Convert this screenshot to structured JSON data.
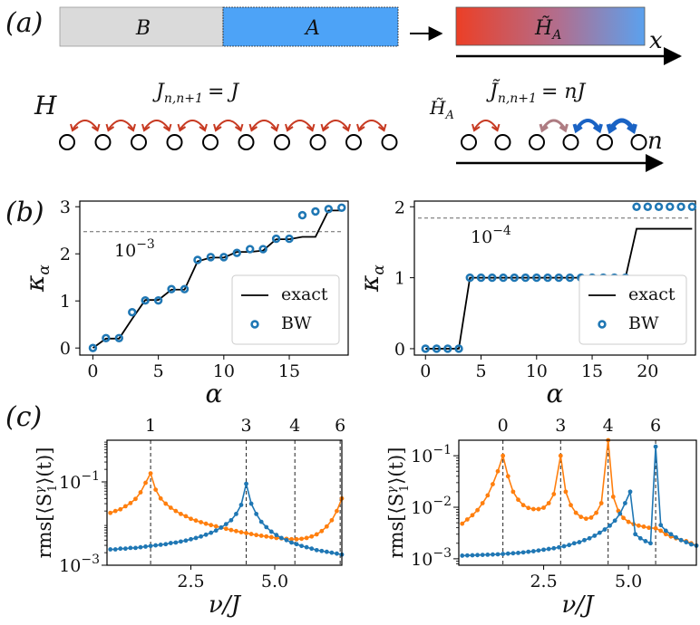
{
  "panel_labels": {
    "a": "(a)",
    "b": "(b)",
    "c": "(c)"
  },
  "schematic": {
    "region_B": "B",
    "region_A": "A",
    "entanglement_hamiltonian": "H̃",
    "entanglement_hamiltonian_sub": "A",
    "x_axis": "x",
    "n_axis": "n",
    "uniform_chain_label": "H",
    "uniform_coupling": "J",
    "uniform_coupling_sub": "n,n+1",
    "uniform_coupling_rhs": "= J",
    "bw_chain_label": "H̃",
    "bw_chain_label_sub": "A",
    "bw_coupling": "J̃",
    "bw_coupling_sub": "n,n+1",
    "bw_coupling_rhs": "= nJ",
    "uniform_sites": 10,
    "bw_sites": 6,
    "colors": {
      "B": "#dadada",
      "A": "#4da3f7",
      "red": "#e8432f",
      "blue": "#2a6fd0",
      "arc_red": "#c73a22",
      "arc_mauve": "#ae7c82",
      "arc_blue": "#1a63c4"
    }
  },
  "chart_data": [
    {
      "type": "line",
      "id": "b-left",
      "ylabel": "κ",
      "ylabel_sub": "α",
      "xlabel": "α",
      "xlim": [
        -1,
        19.5
      ],
      "ylim": [
        -0.15,
        3.12
      ],
      "xticks": [
        0,
        5,
        10,
        15
      ],
      "yticks": [
        0,
        1,
        2,
        3
      ],
      "threshold": {
        "value": 2.47,
        "label": "10",
        "exp": "−3"
      },
      "exact": {
        "name": "exact",
        "x": [
          0,
          1,
          2,
          3,
          4,
          5,
          6,
          7,
          8,
          9,
          10,
          11,
          12,
          13,
          14,
          15,
          16,
          17,
          18,
          19
        ],
        "y": [
          0,
          0.2,
          0.2,
          0.62,
          1.02,
          1.02,
          1.24,
          1.24,
          1.84,
          1.92,
          1.92,
          2.04,
          2.04,
          2.07,
          2.31,
          2.31,
          2.36,
          2.36,
          2.92,
          2.92
        ]
      },
      "bw": {
        "name": "BW",
        "x": [
          0,
          1,
          2,
          3,
          4,
          5,
          6,
          7,
          8,
          9,
          10,
          11,
          12,
          13,
          14,
          15,
          16,
          17,
          18,
          19
        ],
        "y": [
          0,
          0.21,
          0.21,
          0.76,
          1.01,
          1.01,
          1.25,
          1.25,
          1.87,
          1.93,
          1.93,
          2.02,
          2.1,
          2.1,
          2.32,
          2.32,
          2.82,
          2.9,
          2.95,
          2.98
        ]
      },
      "legend": "bottom-right"
    },
    {
      "type": "line",
      "id": "b-right",
      "ylabel": "κ",
      "ylabel_sub": "α",
      "xlabel": "α",
      "xlim": [
        -1,
        24.3
      ],
      "ylim": [
        -0.09,
        2.08
      ],
      "xticks": [
        0,
        5,
        10,
        15,
        20
      ],
      "yticks": [
        0,
        1,
        2
      ],
      "threshold": {
        "value": 1.84,
        "label": "10",
        "exp": "−4"
      },
      "exact": {
        "name": "exact",
        "x": [
          0,
          1,
          2,
          3,
          4,
          5,
          6,
          7,
          8,
          9,
          10,
          11,
          12,
          13,
          14,
          15,
          16,
          17,
          18,
          19,
          20,
          21,
          22,
          23,
          24
        ],
        "y": [
          0,
          0,
          0,
          0,
          1,
          1,
          1,
          1,
          1,
          1,
          1,
          1,
          1,
          1,
          1,
          1,
          1,
          1,
          1,
          1.69,
          1.69,
          1.69,
          1.69,
          1.69,
          1.69
        ]
      },
      "bw": {
        "name": "BW",
        "x": [
          0,
          1,
          2,
          3,
          4,
          5,
          6,
          7,
          8,
          9,
          10,
          11,
          12,
          13,
          14,
          15,
          16,
          17,
          18,
          19,
          20,
          21,
          22,
          23,
          24
        ],
        "y": [
          0,
          0,
          0,
          0,
          1,
          1,
          1,
          1,
          1,
          1,
          1,
          1,
          1,
          1,
          1,
          1,
          1,
          1,
          1,
          2,
          2,
          2,
          2,
          2,
          2
        ]
      },
      "legend": "bottom-right"
    },
    {
      "type": "line",
      "id": "c-left",
      "ylabel": "rms[⟨S",
      "ylabel_sup": "γ",
      "ylabel_sub": "1",
      "ylabel_tail": "⟩(t)]",
      "xlabel": "ν/J",
      "xlim": [
        0,
        7
      ],
      "yscale": "log",
      "ylim": [
        0.001,
        1
      ],
      "xticks": [
        2.5,
        5.0
      ],
      "xtick_labels": [
        "2.5",
        "5.0"
      ],
      "yticks": [
        0.001,
        0.1
      ],
      "ytick_labels": [
        {
          "base": "10",
          "exp": "−3"
        },
        {
          "base": "10",
          "exp": "−1"
        }
      ],
      "markers": [
        {
          "x": 1.3,
          "label": "1",
          "color": "#e8432f"
        },
        {
          "x": 4.15,
          "label": "3",
          "color": "#333333"
        },
        {
          "x": 5.6,
          "label": "4",
          "color": "#e8432f"
        },
        {
          "x": 6.95,
          "label": "6",
          "color": "#e8432f"
        }
      ],
      "series": [
        {
          "name": "orange",
          "color": "#ff7f0e",
          "x": [
            0.1,
            0.25,
            0.4,
            0.55,
            0.7,
            0.85,
            1.0,
            1.15,
            1.3,
            1.45,
            1.6,
            1.75,
            1.9,
            2.05,
            2.2,
            2.35,
            2.5,
            2.65,
            2.8,
            2.95,
            3.1,
            3.25,
            3.4,
            3.55,
            3.7,
            3.85,
            4.0,
            4.15,
            4.3,
            4.45,
            4.6,
            4.75,
            4.9,
            5.05,
            5.2,
            5.35,
            5.5,
            5.65,
            5.8,
            5.95,
            6.1,
            6.25,
            6.4,
            6.55,
            6.7,
            6.85,
            7.0
          ],
          "y": [
            0.018,
            0.02,
            0.022,
            0.026,
            0.031,
            0.039,
            0.056,
            0.095,
            0.16,
            0.065,
            0.04,
            0.03,
            0.024,
            0.02,
            0.017,
            0.015,
            0.013,
            0.0118,
            0.0108,
            0.0099,
            0.0092,
            0.0086,
            0.008,
            0.0075,
            0.007,
            0.0066,
            0.0062,
            0.0059,
            0.0056,
            0.0053,
            0.0051,
            0.0049,
            0.0047,
            0.0045,
            0.0044,
            0.0043,
            0.0042,
            0.0042,
            0.0043,
            0.0045,
            0.0049,
            0.0055,
            0.0066,
            0.0085,
            0.012,
            0.02,
            0.04
          ]
        },
        {
          "name": "blue",
          "color": "#1f77b4",
          "x": [
            0.1,
            0.25,
            0.4,
            0.55,
            0.7,
            0.85,
            1.0,
            1.15,
            1.3,
            1.45,
            1.6,
            1.75,
            1.9,
            2.05,
            2.2,
            2.35,
            2.5,
            2.65,
            2.8,
            2.95,
            3.1,
            3.25,
            3.4,
            3.55,
            3.7,
            3.85,
            4.0,
            4.15,
            4.3,
            4.45,
            4.6,
            4.75,
            4.9,
            5.05,
            5.2,
            5.35,
            5.5,
            5.65,
            5.8,
            5.95,
            6.1,
            6.25,
            6.4,
            6.55,
            6.7,
            6.85,
            7.0
          ],
          "y": [
            0.0024,
            0.0024,
            0.0025,
            0.0025,
            0.0026,
            0.0026,
            0.0027,
            0.0028,
            0.0029,
            0.003,
            0.0031,
            0.0032,
            0.0034,
            0.0035,
            0.0037,
            0.0039,
            0.0042,
            0.0045,
            0.0049,
            0.0054,
            0.006,
            0.0068,
            0.008,
            0.0097,
            0.012,
            0.017,
            0.028,
            0.09,
            0.03,
            0.017,
            0.011,
            0.0082,
            0.0064,
            0.0053,
            0.0045,
            0.004,
            0.0035,
            0.0032,
            0.0029,
            0.0027,
            0.0025,
            0.0023,
            0.0022,
            0.0021,
            0.002,
            0.0019,
            0.0018
          ]
        }
      ]
    },
    {
      "type": "line",
      "id": "c-right",
      "ylabel": "rms[⟨S",
      "ylabel_sup": "γ",
      "ylabel_sub": "1",
      "ylabel_tail": "⟩(t)]",
      "xlabel": "ν/J",
      "xlim": [
        0,
        7
      ],
      "yscale": "log",
      "ylim": [
        0.00075,
        0.2
      ],
      "xticks": [
        2.5,
        5.0
      ],
      "xtick_labels": [
        "2.5",
        "5.0"
      ],
      "yticks": [
        0.001,
        0.01,
        0.1
      ],
      "ytick_labels": [
        {
          "base": "10",
          "exp": "−3"
        },
        {
          "base": "10",
          "exp": "−2"
        },
        {
          "base": "10",
          "exp": "−1"
        }
      ],
      "markers": [
        {
          "x": 1.3,
          "label": "0",
          "color": "#333333"
        },
        {
          "x": 3.0,
          "label": "3",
          "color": "#333333"
        },
        {
          "x": 4.4,
          "label": "4",
          "color": "#e8432f"
        },
        {
          "x": 5.8,
          "label": "6",
          "color": "#e8432f"
        }
      ],
      "series": [
        {
          "name": "orange",
          "color": "#ff7f0e",
          "x": [
            0.1,
            0.25,
            0.4,
            0.55,
            0.7,
            0.85,
            1.0,
            1.15,
            1.3,
            1.45,
            1.6,
            1.75,
            1.9,
            2.05,
            2.2,
            2.35,
            2.5,
            2.65,
            2.8,
            3.0,
            3.15,
            3.3,
            3.45,
            3.6,
            3.75,
            3.9,
            4.05,
            4.2,
            4.4,
            4.55,
            4.7,
            4.85,
            5.0,
            5.15,
            5.3,
            5.45,
            5.6,
            5.8,
            5.95,
            6.1,
            6.25,
            6.4,
            6.55,
            6.7,
            6.85,
            7.0
          ],
          "y": [
            0.0048,
            0.0058,
            0.007,
            0.0088,
            0.012,
            0.017,
            0.028,
            0.05,
            0.1,
            0.04,
            0.02,
            0.014,
            0.011,
            0.0097,
            0.0092,
            0.0092,
            0.0098,
            0.012,
            0.018,
            0.1,
            0.02,
            0.011,
            0.0078,
            0.0065,
            0.006,
            0.0063,
            0.0078,
            0.012,
            0.2,
            0.016,
            0.0085,
            0.0062,
            0.0052,
            0.0047,
            0.0044,
            0.0042,
            0.004,
            0.0039,
            0.0035,
            0.003,
            0.0027,
            0.0025,
            0.0023,
            0.0022,
            0.002,
            0.0018
          ]
        },
        {
          "name": "blue",
          "color": "#1f77b4",
          "x": [
            0.1,
            0.25,
            0.4,
            0.55,
            0.7,
            0.85,
            1.0,
            1.15,
            1.3,
            1.45,
            1.6,
            1.75,
            1.9,
            2.05,
            2.2,
            2.35,
            2.5,
            2.65,
            2.8,
            2.95,
            3.1,
            3.25,
            3.4,
            3.55,
            3.7,
            3.85,
            4.0,
            4.15,
            4.3,
            4.45,
            4.6,
            4.75,
            4.9,
            5.05,
            5.2,
            5.35,
            5.5,
            5.65,
            5.8,
            5.95,
            6.1,
            6.25,
            6.4,
            6.55,
            6.7,
            6.85,
            7.0
          ],
          "y": [
            0.00115,
            0.00116,
            0.00117,
            0.00118,
            0.00119,
            0.0012,
            0.00121,
            0.00122,
            0.00124,
            0.00126,
            0.00128,
            0.0013,
            0.00133,
            0.00137,
            0.0014,
            0.00145,
            0.0015,
            0.00155,
            0.0016,
            0.00167,
            0.00175,
            0.00185,
            0.002,
            0.0021,
            0.0023,
            0.0025,
            0.0028,
            0.0032,
            0.0037,
            0.0044,
            0.0055,
            0.0075,
            0.012,
            0.02,
            0.003,
            0.0025,
            0.0022,
            0.002,
            0.15,
            0.0045,
            0.0035,
            0.003,
            0.0026,
            0.0023,
            0.0021,
            0.0019,
            0.0018
          ]
        }
      ]
    }
  ]
}
